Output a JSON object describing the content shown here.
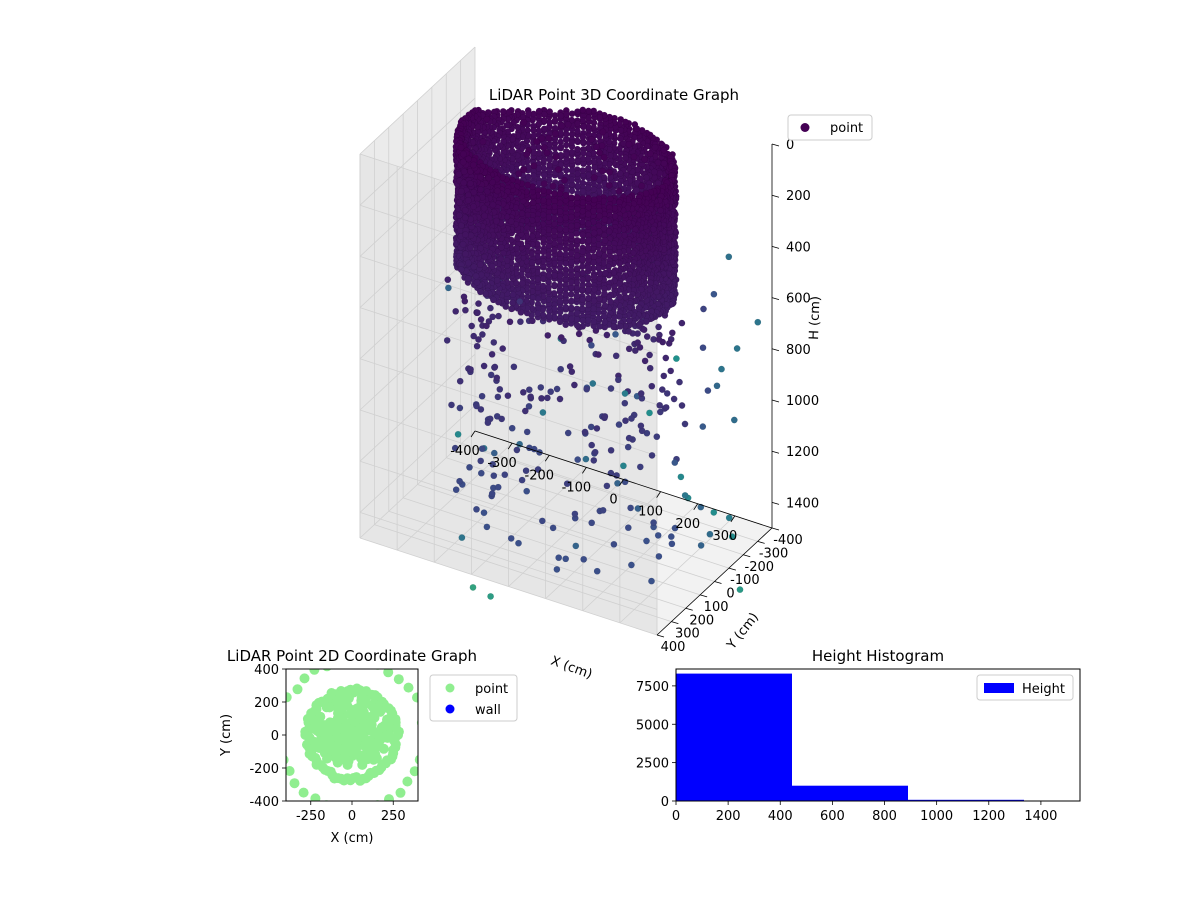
{
  "chart_data": [
    {
      "type": "scatter3d",
      "title": "LiDAR Point 3D Coordinate Graph",
      "xlabel": "X (cm)",
      "ylabel": "Y (cm)",
      "zlabel": "H (cm)",
      "legend": {
        "position": "top-right",
        "entries": [
          "point"
        ]
      },
      "colormap": "viridis",
      "xlim": [
        -400,
        400
      ],
      "ylim": [
        -400,
        400
      ],
      "zlim": [
        0,
        1500
      ],
      "z_inverted": true,
      "xticks": [
        "-400",
        "-300",
        "-200",
        "-100",
        "0",
        "100",
        "200",
        "300"
      ],
      "yticks": [
        "-400",
        "-300",
        "-200",
        "-100",
        "0",
        "100",
        "200",
        "300",
        "400"
      ],
      "zticks": [
        "0",
        "200",
        "400",
        "600",
        "800",
        "1000",
        "1200",
        "1400"
      ],
      "grid": true,
      "point_structure": {
        "ring_radius": 270,
        "ring_height": [
          0,
          500
        ],
        "scatter_height": [
          500,
          1500
        ]
      }
    },
    {
      "type": "scatter",
      "title": "LiDAR Point 2D Coordinate Graph",
      "xlabel": "X (cm)",
      "ylabel": "Y (cm)",
      "xlim": [
        -400,
        400
      ],
      "ylim": [
        -400,
        400
      ],
      "xticks": [
        "-250",
        "0",
        "250"
      ],
      "yticks": [
        "-400",
        "-200",
        "0",
        "200",
        "400"
      ],
      "legend": {
        "position": "outside-right",
        "entries": [
          "point",
          "wall"
        ]
      },
      "series": [
        {
          "name": "point",
          "color": "#90ee90"
        },
        {
          "name": "wall",
          "color": "#0000ff"
        }
      ]
    },
    {
      "type": "bar",
      "title": "Height Histogram",
      "xlim": [
        0,
        1550
      ],
      "ylim": [
        0,
        8600
      ],
      "xticks": [
        "0",
        "200",
        "400",
        "600",
        "800",
        "1000",
        "1200",
        "1400"
      ],
      "yticks": [
        "0",
        "2500",
        "5000",
        "7500"
      ],
      "bins": [
        {
          "from": 0,
          "to": 445,
          "count": 8300
        },
        {
          "from": 445,
          "to": 890,
          "count": 1000
        },
        {
          "from": 890,
          "to": 1335,
          "count": 80
        },
        {
          "from": 1335,
          "to": 1550,
          "count": 0
        }
      ],
      "legend": {
        "position": "top-right",
        "entries": [
          "Height"
        ]
      },
      "color": "#0000ff"
    }
  ]
}
